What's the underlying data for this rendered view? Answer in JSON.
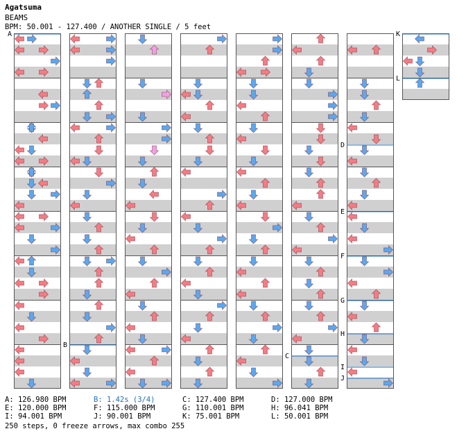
{
  "header": {
    "title": "Agatsuma",
    "subtitle": "BEAMS",
    "info": "BPM: 50.001 - 127.400 / ANOTHER SINGLE / 5 feet"
  },
  "markers": [
    {
      "label": "A",
      "col": 0,
      "beat": 0
    },
    {
      "label": "B",
      "col": 1,
      "beat": 28
    },
    {
      "label": "C",
      "col": 5,
      "beat": 29
    },
    {
      "label": "D",
      "col": 6,
      "beat": 10
    },
    {
      "label": "E",
      "col": 6,
      "beat": 16
    },
    {
      "label": "F",
      "col": 6,
      "beat": 20
    },
    {
      "label": "G",
      "col": 6,
      "beat": 24
    },
    {
      "label": "H",
      "col": 6,
      "beat": 27
    },
    {
      "label": "I",
      "col": 6,
      "beat": 30
    },
    {
      "label": "J",
      "col": 6,
      "beat": 31
    },
    {
      "label": "K",
      "col": 7,
      "beat": 0
    },
    {
      "label": "L",
      "col": 7,
      "beat": 4
    }
  ],
  "legend": [
    [
      {
        "text": "A: 126.980 BPM",
        "color": "#000000"
      },
      {
        "text": "B: 1.42s (3/4)",
        "color": "#1f6fbf"
      },
      {
        "text": "C: 127.400 BPM",
        "color": "#000000"
      },
      {
        "text": "D: 127.000 BPM",
        "color": "#000000"
      }
    ],
    [
      {
        "text": "E: 120.000 BPM",
        "color": "#000000"
      },
      {
        "text": "F: 115.000 BPM",
        "color": "#000000"
      },
      {
        "text": "G: 110.001 BPM",
        "color": "#000000"
      },
      {
        "text": "H: 96.041 BPM",
        "color": "#000000"
      }
    ],
    [
      {
        "text": "I: 94.001 BPM",
        "color": "#000000"
      },
      {
        "text": "J: 90.001 BPM",
        "color": "#000000"
      },
      {
        "text": "K: 75.001 BPM",
        "color": "#000000"
      },
      {
        "text": "L: 50.001 BPM",
        "color": "#000000"
      }
    ]
  ],
  "summary": "250 steps, 0 freeze arrows, max combo 255",
  "colors": {
    "red": "#f47c84",
    "blue": "#5aa8f0",
    "pink": "#f0a0e8",
    "stripe": "#d0d0d0",
    "line": "#555555"
  },
  "notes": [
    [
      [
        0,
        0,
        "left"
      ],
      [
        0,
        1,
        "right"
      ],
      [
        1,
        0,
        "left"
      ],
      [
        1,
        2,
        "right"
      ],
      [
        2,
        3,
        "right"
      ],
      [
        3,
        0,
        "left"
      ],
      [
        3,
        2,
        "right"
      ],
      [
        5,
        2,
        "left"
      ],
      [
        6,
        2,
        "right"
      ],
      [
        6,
        3,
        "right"
      ],
      [
        8,
        1,
        "down"
      ],
      [
        8,
        1,
        "up"
      ],
      [
        9,
        2,
        "left"
      ],
      [
        10,
        1,
        "down"
      ],
      [
        10,
        0,
        "left"
      ],
      [
        11,
        0,
        "left"
      ],
      [
        11,
        2,
        "right"
      ],
      [
        12,
        1,
        "down"
      ],
      [
        12,
        1,
        "up"
      ],
      [
        13,
        1,
        "down"
      ],
      [
        13,
        2,
        "left"
      ],
      [
        14,
        1,
        "down"
      ],
      [
        14,
        3,
        "right"
      ],
      [
        15,
        0,
        "left"
      ],
      [
        16,
        0,
        "left"
      ],
      [
        16,
        2,
        "right"
      ],
      [
        17,
        0,
        "left"
      ],
      [
        17,
        3,
        "right"
      ],
      [
        18,
        1,
        "down"
      ],
      [
        19,
        3,
        "right"
      ],
      [
        20,
        0,
        "left"
      ],
      [
        20,
        1,
        "up"
      ],
      [
        21,
        1,
        "down"
      ],
      [
        22,
        0,
        "left"
      ],
      [
        22,
        2,
        "right"
      ],
      [
        23,
        2,
        "right"
      ],
      [
        24,
        0,
        "left"
      ],
      [
        25,
        1,
        "down"
      ],
      [
        26,
        0,
        "left"
      ],
      [
        27,
        2,
        "right"
      ],
      [
        28,
        0,
        "left"
      ],
      [
        29,
        0,
        "left"
      ],
      [
        30,
        0,
        "left"
      ],
      [
        31,
        1,
        "down"
      ]
    ],
    [
      [
        0,
        0,
        "left"
      ],
      [
        0,
        3,
        "right"
      ],
      [
        1,
        0,
        "left"
      ],
      [
        1,
        3,
        "right"
      ],
      [
        2,
        3,
        "right"
      ],
      [
        4,
        1,
        "down"
      ],
      [
        4,
        2,
        "up"
      ],
      [
        5,
        1,
        "up"
      ],
      [
        6,
        2,
        "up"
      ],
      [
        7,
        1,
        "down"
      ],
      [
        7,
        3,
        "right"
      ],
      [
        8,
        0,
        "left"
      ],
      [
        8,
        3,
        "right"
      ],
      [
        9,
        2,
        "up"
      ],
      [
        10,
        2,
        "down"
      ],
      [
        11,
        0,
        "left"
      ],
      [
        11,
        1,
        "down"
      ],
      [
        12,
        2,
        "down"
      ],
      [
        13,
        3,
        "right"
      ],
      [
        14,
        1,
        "down"
      ],
      [
        15,
        0,
        "left"
      ],
      [
        16,
        1,
        "down"
      ],
      [
        17,
        2,
        "up"
      ],
      [
        18,
        1,
        "down"
      ],
      [
        19,
        2,
        "up"
      ],
      [
        20,
        1,
        "down"
      ],
      [
        20,
        3,
        "right"
      ],
      [
        21,
        2,
        "up"
      ],
      [
        22,
        2,
        "up"
      ],
      [
        23,
        1,
        "down"
      ],
      [
        24,
        2,
        "up"
      ],
      [
        25,
        1,
        "down"
      ],
      [
        26,
        3,
        "right"
      ],
      [
        27,
        2,
        "up"
      ],
      [
        28,
        1,
        "down"
      ],
      [
        29,
        0,
        "left"
      ],
      [
        30,
        1,
        "down"
      ],
      [
        31,
        0,
        "left"
      ],
      [
        31,
        3,
        "right"
      ]
    ],
    [
      [
        0,
        1,
        "down"
      ],
      [
        1,
        2,
        "up"
      ],
      [
        4,
        1,
        "down"
      ],
      [
        5,
        3,
        "right"
      ],
      [
        7,
        1,
        "down"
      ],
      [
        8,
        3,
        "right"
      ],
      [
        9,
        3,
        "right"
      ],
      [
        10,
        2,
        "down"
      ],
      [
        11,
        1,
        "down"
      ],
      [
        12,
        2,
        "up"
      ],
      [
        13,
        1,
        "down"
      ],
      [
        14,
        2,
        "left"
      ],
      [
        15,
        0,
        "left"
      ],
      [
        16,
        2,
        "down"
      ],
      [
        17,
        1,
        "down"
      ],
      [
        18,
        0,
        "left"
      ],
      [
        19,
        2,
        "up"
      ],
      [
        20,
        1,
        "down"
      ],
      [
        21,
        3,
        "right"
      ],
      [
        22,
        2,
        "up"
      ],
      [
        23,
        0,
        "left"
      ],
      [
        24,
        1,
        "down"
      ],
      [
        25,
        2,
        "up"
      ],
      [
        26,
        0,
        "left"
      ],
      [
        27,
        1,
        "down"
      ],
      [
        28,
        0,
        "left"
      ],
      [
        28,
        3,
        "right"
      ],
      [
        29,
        2,
        "up"
      ],
      [
        30,
        0,
        "left"
      ],
      [
        31,
        1,
        "down"
      ],
      [
        31,
        3,
        "right"
      ]
    ],
    [
      [
        0,
        3,
        "right"
      ],
      [
        1,
        2,
        "up"
      ],
      [
        4,
        1,
        "down"
      ],
      [
        5,
        1,
        "down"
      ],
      [
        5,
        0,
        "left"
      ],
      [
        6,
        2,
        "up"
      ],
      [
        7,
        0,
        "left"
      ],
      [
        8,
        1,
        "down"
      ],
      [
        9,
        2,
        "up"
      ],
      [
        10,
        2,
        "down"
      ],
      [
        11,
        1,
        "down"
      ],
      [
        12,
        0,
        "left"
      ],
      [
        14,
        3,
        "right"
      ],
      [
        15,
        2,
        "up"
      ],
      [
        16,
        0,
        "left"
      ],
      [
        17,
        1,
        "down"
      ],
      [
        18,
        3,
        "right"
      ],
      [
        19,
        2,
        "up"
      ],
      [
        20,
        1,
        "down"
      ],
      [
        21,
        2,
        "up"
      ],
      [
        22,
        0,
        "left"
      ],
      [
        23,
        1,
        "down"
      ],
      [
        24,
        3,
        "right"
      ],
      [
        25,
        2,
        "up"
      ],
      [
        26,
        1,
        "down"
      ],
      [
        27,
        0,
        "left"
      ],
      [
        28,
        2,
        "up"
      ],
      [
        29,
        1,
        "down"
      ],
      [
        30,
        2,
        "up"
      ],
      [
        31,
        1,
        "down"
      ]
    ],
    [
      [
        0,
        3,
        "right"
      ],
      [
        1,
        3,
        "right"
      ],
      [
        2,
        2,
        "up"
      ],
      [
        3,
        0,
        "left"
      ],
      [
        3,
        2,
        "right"
      ],
      [
        4,
        1,
        "down"
      ],
      [
        5,
        1,
        "down"
      ],
      [
        6,
        0,
        "left"
      ],
      [
        7,
        2,
        "up"
      ],
      [
        8,
        1,
        "down"
      ],
      [
        9,
        0,
        "left"
      ],
      [
        10,
        2,
        "down"
      ],
      [
        11,
        1,
        "down"
      ],
      [
        12,
        0,
        "left"
      ],
      [
        13,
        2,
        "up"
      ],
      [
        14,
        1,
        "down"
      ],
      [
        15,
        0,
        "left"
      ],
      [
        16,
        2,
        "down"
      ],
      [
        17,
        3,
        "right"
      ],
      [
        18,
        1,
        "down"
      ],
      [
        19,
        2,
        "up"
      ],
      [
        20,
        1,
        "down"
      ],
      [
        21,
        0,
        "left"
      ],
      [
        22,
        2,
        "up"
      ],
      [
        23,
        0,
        "left"
      ],
      [
        24,
        1,
        "down"
      ],
      [
        25,
        2,
        "up"
      ],
      [
        26,
        3,
        "right"
      ],
      [
        27,
        1,
        "down"
      ],
      [
        28,
        2,
        "up"
      ],
      [
        29,
        0,
        "left"
      ],
      [
        30,
        1,
        "down"
      ],
      [
        31,
        3,
        "right"
      ]
    ],
    [
      [
        0,
        2,
        "up"
      ],
      [
        1,
        0,
        "left"
      ],
      [
        2,
        2,
        "up"
      ],
      [
        3,
        1,
        "down"
      ],
      [
        4,
        1,
        "down"
      ],
      [
        5,
        3,
        "right"
      ],
      [
        6,
        3,
        "right"
      ],
      [
        7,
        3,
        "right"
      ],
      [
        8,
        2,
        "down"
      ],
      [
        9,
        2,
        "down"
      ],
      [
        10,
        1,
        "down"
      ],
      [
        11,
        2,
        "down"
      ],
      [
        12,
        1,
        "down"
      ],
      [
        13,
        2,
        "up"
      ],
      [
        14,
        2,
        "up"
      ],
      [
        15,
        0,
        "left"
      ],
      [
        16,
        1,
        "down"
      ],
      [
        17,
        2,
        "up"
      ],
      [
        18,
        3,
        "right"
      ],
      [
        19,
        0,
        "left"
      ],
      [
        20,
        1,
        "down"
      ],
      [
        21,
        2,
        "up"
      ],
      [
        22,
        1,
        "down"
      ],
      [
        23,
        2,
        "up"
      ],
      [
        24,
        1,
        "down"
      ],
      [
        25,
        2,
        "up"
      ],
      [
        26,
        3,
        "right"
      ],
      [
        27,
        0,
        "left"
      ],
      [
        28,
        1,
        "down"
      ],
      [
        29,
        1,
        "down"
      ],
      [
        30,
        2,
        "up"
      ],
      [
        31,
        1,
        "down"
      ]
    ],
    [
      [
        1,
        2,
        "up"
      ],
      [
        1,
        0,
        "left"
      ],
      [
        4,
        1,
        "down"
      ],
      [
        5,
        1,
        "down"
      ],
      [
        6,
        2,
        "up"
      ],
      [
        7,
        1,
        "down"
      ],
      [
        8,
        0,
        "left"
      ],
      [
        9,
        2,
        "down"
      ],
      [
        10,
        1,
        "down"
      ],
      [
        11,
        0,
        "left"
      ],
      [
        12,
        1,
        "down"
      ],
      [
        13,
        2,
        "up"
      ],
      [
        14,
        1,
        "down"
      ],
      [
        15,
        0,
        "left"
      ],
      [
        16,
        0,
        "left"
      ],
      [
        17,
        1,
        "down"
      ],
      [
        18,
        0,
        "left"
      ],
      [
        19,
        3,
        "right"
      ],
      [
        20,
        1,
        "down"
      ],
      [
        21,
        3,
        "right"
      ],
      [
        22,
        0,
        "left"
      ],
      [
        23,
        2,
        "up"
      ],
      [
        24,
        1,
        "down"
      ],
      [
        25,
        0,
        "left"
      ],
      [
        26,
        2,
        "up"
      ],
      [
        27,
        1,
        "down"
      ],
      [
        28,
        0,
        "left"
      ],
      [
        29,
        1,
        "down"
      ],
      [
        30,
        0,
        "left"
      ],
      [
        31,
        3,
        "right"
      ]
    ],
    [
      [
        0,
        1,
        "left"
      ],
      [
        1,
        2,
        "right"
      ],
      [
        2,
        0,
        "left"
      ],
      [
        2,
        1,
        "down"
      ],
      [
        3,
        1,
        "down"
      ],
      [
        4,
        1,
        "up"
      ]
    ]
  ],
  "pinkNotes": [
    [
      1,
      2,
      "up"
    ],
    [
      4,
      1,
      "up"
    ],
    [
      5,
      3,
      "right"
    ],
    [
      9,
      2,
      "down"
    ],
    [
      10,
      2,
      "down"
    ],
    [
      12,
      0,
      "left"
    ],
    [
      29,
      0,
      "left"
    ],
    [
      30,
      1,
      "down"
    ],
    [
      30,
      2,
      "up"
    ]
  ]
}
